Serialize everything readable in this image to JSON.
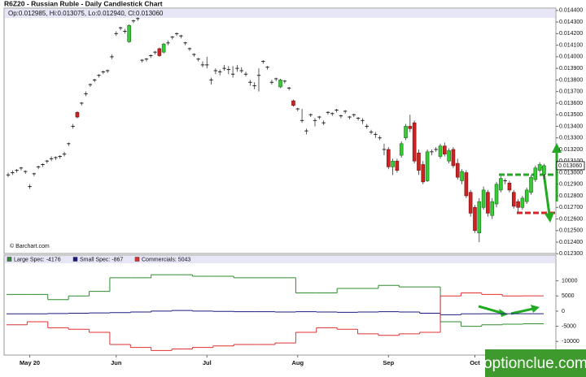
{
  "chart_data": [
    {
      "type": "candlestick",
      "title": "R6Z20 - Russian Ruble - Daily Candlestick Chart",
      "info": "Op:0.012985, Hi:0.013075, Lo:0.012940, Cl:0.013060",
      "source": "© Barchart.com",
      "last_value_label": "0.013060",
      "up_color": "#33cc33",
      "down_color": "#cc2222",
      "categories": [
        null,
        null,
        null,
        null,
        null,
        "May 20",
        null,
        null,
        null,
        null,
        null,
        null,
        null,
        null,
        null,
        null,
        null,
        null,
        null,
        null,
        null,
        null,
        null,
        null,
        null,
        "Jun",
        null,
        null,
        null,
        null,
        null,
        null,
        null,
        null,
        null,
        null,
        null,
        null,
        null,
        null,
        null,
        null,
        null,
        null,
        null,
        null,
        "Jul",
        null,
        null,
        null,
        null,
        null,
        null,
        null,
        null,
        null,
        null,
        null,
        null,
        null,
        null,
        null,
        null,
        null,
        null,
        null,
        null,
        "Aug",
        null,
        null,
        null,
        null,
        null,
        null,
        null,
        null,
        null,
        null,
        null,
        null,
        null,
        null,
        null,
        null,
        null,
        null,
        null,
        null,
        "Sep",
        null,
        null,
        null,
        null,
        null,
        null,
        null,
        null,
        null,
        null,
        null,
        null,
        null,
        null,
        null,
        null,
        null,
        null,
        null,
        "Oct",
        null,
        null,
        null,
        null,
        null,
        null,
        null,
        null,
        null,
        null,
        null,
        null,
        null,
        null,
        null,
        null
      ],
      "open": [
        0.01298,
        0.013,
        0.01302,
        0.01304,
        0.01301,
        0.01288,
        0.01299,
        0.01305,
        0.01307,
        0.0131,
        0.01312,
        0.01313,
        0.01314,
        0.01316,
        0.01325,
        0.0134,
        0.01352,
        0.0136,
        0.01368,
        0.01376,
        0.0138,
        0.01384,
        0.01387,
        0.01388,
        0.014,
        0.0142,
        0.01425,
        0.01422,
        0.01413,
        0.01431,
        0.01433,
        0.01397,
        0.01398,
        0.01401,
        0.01404,
        0.01407,
        0.01404,
        0.01412,
        0.01417,
        0.0142,
        0.01418,
        0.01412,
        0.01407,
        0.01402,
        0.01398,
        0.01393,
        0.01393,
        0.0138,
        0.01388,
        0.01387,
        0.0139,
        0.01389,
        0.01385,
        0.0139,
        0.01388,
        0.01385,
        0.01378,
        0.01375,
        0.01384,
        0.01396,
        0.01391,
        0.01378,
        0.01381,
        0.01374,
        0.01379,
        0.01373,
        0.01362,
        0.01355,
        0.01345,
        0.01336,
        0.0135,
        0.01345,
        0.01348,
        0.01343,
        0.01352,
        0.01351,
        0.01354,
        0.01349,
        0.01353,
        0.01348,
        0.0135,
        0.01347,
        0.01345,
        0.0134,
        0.01335,
        0.01333,
        0.0133,
        0.0132,
        0.0132,
        0.01305,
        0.0131,
        0.01315,
        0.0133,
        0.0134,
        0.01343,
        0.01317,
        0.01307,
        0.01293,
        0.01318,
        0.0132,
        0.01314,
        0.01323,
        0.0131,
        0.0132,
        0.01308,
        0.01293,
        0.013,
        0.01283,
        0.0127,
        0.01248,
        0.0127,
        0.01283,
        0.01263,
        0.01273,
        0.01285,
        0.01293,
        0.01291,
        0.01283,
        0.01275,
        0.0127,
        0.01275,
        0.01283,
        0.01294,
        0.01302,
        0.012985
      ],
      "high": [
        0.013,
        0.01302,
        0.01303,
        0.01305,
        0.01302,
        0.0129,
        0.013,
        0.01306,
        0.01308,
        0.01311,
        0.01314,
        0.01314,
        0.01315,
        0.01318,
        0.01326,
        0.01342,
        0.01353,
        0.01361,
        0.0137,
        0.01377,
        0.01381,
        0.01385,
        0.01388,
        0.01389,
        0.01402,
        0.01422,
        0.01426,
        0.01424,
        0.01428,
        0.01432,
        0.01434,
        0.01398,
        0.01399,
        0.01402,
        0.01405,
        0.01408,
        0.01412,
        0.01414,
        0.01418,
        0.01421,
        0.01419,
        0.01413,
        0.01408,
        0.01403,
        0.01399,
        0.01396,
        0.014,
        0.01382,
        0.0139,
        0.01389,
        0.01393,
        0.01392,
        0.01392,
        0.01393,
        0.01391,
        0.01387,
        0.0138,
        0.01378,
        0.0139,
        0.01397,
        0.01392,
        0.0138,
        0.01382,
        0.01381,
        0.0138,
        0.01374,
        0.01363,
        0.01356,
        0.01355,
        0.01338,
        0.01351,
        0.01347,
        0.01349,
        0.01345,
        0.01353,
        0.01352,
        0.01355,
        0.0135,
        0.01354,
        0.01349,
        0.01351,
        0.01348,
        0.01347,
        0.01342,
        0.01337,
        0.01335,
        0.01332,
        0.01325,
        0.01322,
        0.01312,
        0.01312,
        0.01327,
        0.01342,
        0.0135,
        0.01345,
        0.0132,
        0.0131,
        0.0132,
        0.0132,
        0.01322,
        0.01325,
        0.01326,
        0.01321,
        0.01322,
        0.01312,
        0.01303,
        0.01302,
        0.01285,
        0.01272,
        0.01278,
        0.01288,
        0.01285,
        0.01278,
        0.01292,
        0.01297,
        0.01295,
        0.01293,
        0.01285,
        0.01277,
        0.0128,
        0.01287,
        0.01298,
        0.01306,
        0.01309,
        0.013075
      ],
      "low": [
        0.01296,
        0.01298,
        0.013,
        0.01302,
        0.01299,
        0.01286,
        0.01297,
        0.01303,
        0.01305,
        0.01308,
        0.0131,
        0.01311,
        0.01312,
        0.01314,
        0.01323,
        0.01338,
        0.01347,
        0.01358,
        0.01366,
        0.01374,
        0.01378,
        0.01382,
        0.01385,
        0.01386,
        0.01398,
        0.01418,
        0.01423,
        0.0142,
        0.01412,
        0.01429,
        0.01431,
        0.01395,
        0.01396,
        0.01399,
        0.01402,
        0.014,
        0.01403,
        0.0141,
        0.01415,
        0.01418,
        0.01416,
        0.0141,
        0.01405,
        0.014,
        0.01396,
        0.01391,
        0.0139,
        0.01376,
        0.01385,
        0.01384,
        0.01388,
        0.01385,
        0.01382,
        0.01387,
        0.01386,
        0.01383,
        0.01375,
        0.01372,
        0.0137,
        0.01394,
        0.01389,
        0.01376,
        0.01379,
        0.01373,
        0.01377,
        0.01371,
        0.01357,
        0.01353,
        0.01343,
        0.01333,
        0.01348,
        0.0134,
        0.01346,
        0.01341,
        0.0135,
        0.01349,
        0.01352,
        0.01347,
        0.01351,
        0.01346,
        0.01348,
        0.01345,
        0.01342,
        0.01338,
        0.01333,
        0.0133,
        0.01328,
        0.01315,
        0.01303,
        0.01298,
        0.013,
        0.01313,
        0.01328,
        0.01335,
        0.01308,
        0.01298,
        0.0129,
        0.01292,
        0.01315,
        0.01318,
        0.01312,
        0.01314,
        0.01308,
        0.01304,
        0.01294,
        0.0129,
        0.01278,
        0.01262,
        0.01248,
        0.0124,
        0.01268,
        0.01262,
        0.0126,
        0.0127,
        0.01283,
        0.0129,
        0.01283,
        0.01269,
        0.01266,
        0.01268,
        0.01273,
        0.01281,
        0.01292,
        0.013,
        0.01294
      ],
      "close": [
        0.01298,
        0.013,
        0.01302,
        0.01304,
        0.01301,
        0.01288,
        0.01299,
        0.01305,
        0.01307,
        0.0131,
        0.01312,
        0.01313,
        0.01314,
        0.01316,
        0.01325,
        0.0134,
        0.01348,
        0.0136,
        0.01368,
        0.01376,
        0.0138,
        0.01384,
        0.01387,
        0.01388,
        0.014,
        0.0142,
        0.01425,
        0.01422,
        0.01427,
        0.01431,
        0.01433,
        0.01397,
        0.01398,
        0.01401,
        0.01404,
        0.01401,
        0.01411,
        0.01412,
        0.01417,
        0.0142,
        0.01418,
        0.01412,
        0.01407,
        0.01402,
        0.01398,
        0.01393,
        0.01393,
        0.0138,
        0.01388,
        0.01387,
        0.0139,
        0.01389,
        0.01385,
        0.0139,
        0.01388,
        0.01385,
        0.01378,
        0.01375,
        0.01384,
        0.01396,
        0.01391,
        0.01378,
        0.01381,
        0.0138,
        0.01379,
        0.01373,
        0.01358,
        0.01355,
        0.01345,
        0.01336,
        0.0135,
        0.01345,
        0.01348,
        0.01343,
        0.01352,
        0.01351,
        0.01354,
        0.01349,
        0.01353,
        0.01348,
        0.0135,
        0.01347,
        0.01345,
        0.0134,
        0.01335,
        0.01333,
        0.0133,
        0.0132,
        0.01305,
        0.0131,
        0.01302,
        0.01325,
        0.0134,
        0.01338,
        0.0131,
        0.01302,
        0.01292,
        0.01318,
        0.01318,
        0.0132,
        0.01323,
        0.01316,
        0.01319,
        0.01306,
        0.01296,
        0.01301,
        0.0128,
        0.01265,
        0.0125,
        0.01275,
        0.01285,
        0.01265,
        0.01275,
        0.0129,
        0.01295,
        0.01293,
        0.01285,
        0.01271,
        0.0127,
        0.01278,
        0.01285,
        0.01296,
        0.01304,
        0.01307,
        0.01306
      ],
      "ylim": [
        0.01226,
        0.01442
      ],
      "yticks": [
        {
          "value": 0.0144,
          "label": "0.014400"
        },
        {
          "value": 0.0143,
          "label": "0.014300"
        },
        {
          "value": 0.0142,
          "label": "0.014200"
        },
        {
          "value": 0.0141,
          "label": "0.014100"
        },
        {
          "value": 0.014,
          "label": "0.014000"
        },
        {
          "value": 0.0139,
          "label": "0.013900"
        },
        {
          "value": 0.0138,
          "label": "0.013800"
        },
        {
          "value": 0.0137,
          "label": "0.013700"
        },
        {
          "value": 0.0136,
          "label": "0.013600"
        },
        {
          "value": 0.0135,
          "label": "0.013500"
        },
        {
          "value": 0.0134,
          "label": "0.013400"
        },
        {
          "value": 0.0133,
          "label": "0.013300"
        },
        {
          "value": 0.0132,
          "label": "0.013200"
        },
        {
          "value": 0.0131,
          "label": "0.013100"
        },
        {
          "value": 0.013,
          "label": "0.013000"
        },
        {
          "value": 0.0129,
          "label": "0.012900"
        },
        {
          "value": 0.0128,
          "label": "0.012800"
        },
        {
          "value": 0.0127,
          "label": "0.012700"
        },
        {
          "value": 0.0126,
          "label": "0.012600"
        },
        {
          "value": 0.0125,
          "label": "0.012500"
        },
        {
          "value": 0.0124,
          "label": "0.012400"
        },
        {
          "value": 0.0123,
          "label": "0.012300"
        }
      ]
    },
    {
      "type": "line",
      "step": true,
      "series": [
        {
          "name": "Large Spec: -4176",
          "color": "#2e8b2e",
          "values": [
            5500,
            5500,
            3800,
            5000,
            6500,
            11000,
            11000,
            12000,
            12000,
            11500,
            11500,
            11000,
            11000,
            11000,
            6000,
            6000,
            7500,
            7500,
            8500,
            8000,
            8000,
            -3500,
            -5000,
            -4500,
            -4300,
            -4176
          ]
        },
        {
          "name": "Small Spec: -867",
          "color": "#1a1a80",
          "values": [
            -900,
            -900,
            -800,
            -700,
            -600,
            -500,
            -300,
            0,
            200,
            0,
            -100,
            -200,
            -200,
            -300,
            -200,
            -300,
            -400,
            -300,
            -200,
            -300,
            -700,
            -1200,
            -900,
            -850,
            -870,
            -867
          ]
        },
        {
          "name": "Commercials: 5043",
          "color": "#e03030",
          "values": [
            -4500,
            -3500,
            -5500,
            -6000,
            -7000,
            -11000,
            -12000,
            -13000,
            -12500,
            -12000,
            -11500,
            -11000,
            -11000,
            -10500,
            -7000,
            -5500,
            -6000,
            -7500,
            -8000,
            -7500,
            -7000,
            5000,
            6000,
            5500,
            5000,
            5043
          ]
        }
      ],
      "ylim": [
        -14500,
        15800
      ],
      "yticks": [
        10000,
        5000,
        0,
        -5000,
        -10000
      ]
    }
  ],
  "watermark": "optionclue.com"
}
